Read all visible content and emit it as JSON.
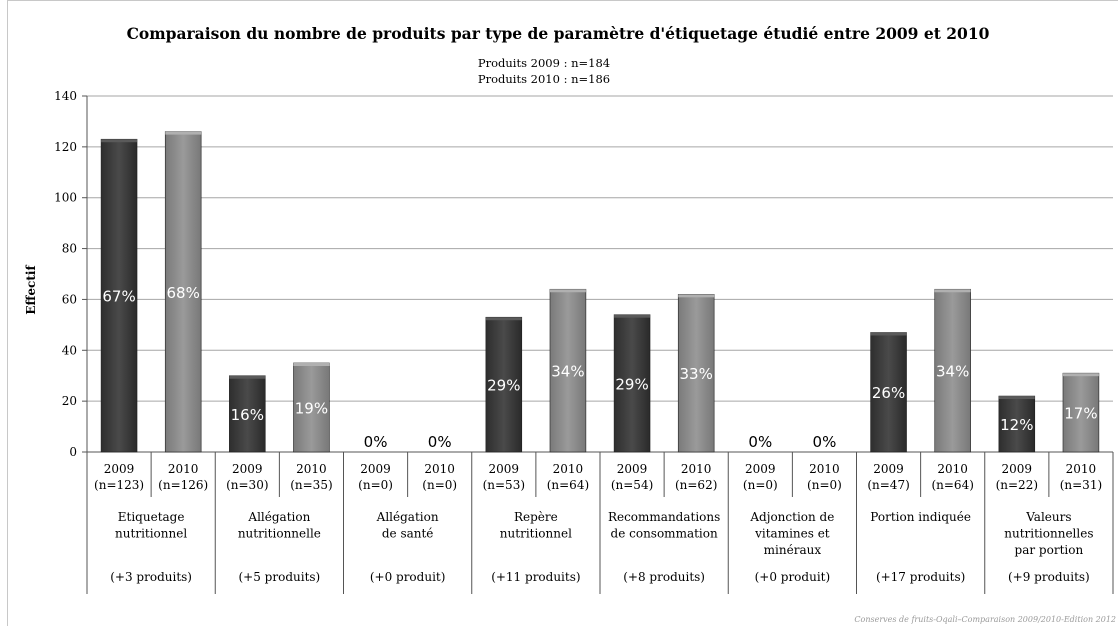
{
  "chart_data": {
    "type": "bar",
    "title": "Comparaison du nombre de produits par type de paramètre d'étiquetage étudié entre 2009 et 2010",
    "subtitle_lines": [
      "Produits 2009 : n=184",
      "Produits 2010 : n=186"
    ],
    "ylabel": "Effectif",
    "ylim": [
      0,
      140
    ],
    "yticks": [
      0,
      20,
      40,
      60,
      80,
      100,
      120,
      140
    ],
    "grid": true,
    "groups": [
      {
        "label": [
          "Etiquetage",
          "nutritionnel"
        ],
        "change": "(+3 produits)",
        "bars": [
          {
            "year": "2009",
            "n": "(n=123)",
            "value": 123,
            "pct": "67%"
          },
          {
            "year": "2010",
            "n": "(n=126)",
            "value": 126,
            "pct": "68%"
          }
        ]
      },
      {
        "label": [
          "Allégation",
          "nutritionnelle"
        ],
        "change": "(+5 produits)",
        "bars": [
          {
            "year": "2009",
            "n": "(n=30)",
            "value": 30,
            "pct": "16%"
          },
          {
            "year": "2010",
            "n": "(n=35)",
            "value": 35,
            "pct": "19%"
          }
        ]
      },
      {
        "label": [
          "Allégation",
          "de santé"
        ],
        "change": "(+0 produit)",
        "bars": [
          {
            "year": "2009",
            "n": "(n=0)",
            "value": 0,
            "pct": "0%"
          },
          {
            "year": "2010",
            "n": "(n=0)",
            "value": 0,
            "pct": "0%"
          }
        ]
      },
      {
        "label": [
          "Repère",
          "nutritionnel"
        ],
        "change": "(+11 produits)",
        "bars": [
          {
            "year": "2009",
            "n": "(n=53)",
            "value": 53,
            "pct": "29%"
          },
          {
            "year": "2010",
            "n": "(n=64)",
            "value": 64,
            "pct": "34%"
          }
        ]
      },
      {
        "label": [
          "Recommandations",
          "de consommation"
        ],
        "change": "(+8 produits)",
        "bars": [
          {
            "year": "2009",
            "n": "(n=54)",
            "value": 54,
            "pct": "29%"
          },
          {
            "year": "2010",
            "n": "(n=62)",
            "value": 62,
            "pct": "33%"
          }
        ]
      },
      {
        "label": [
          "Adjonction de",
          "vitamines et",
          "minéraux"
        ],
        "change": "(+0 produit)",
        "bars": [
          {
            "year": "2009",
            "n": "(n=0)",
            "value": 0,
            "pct": "0%"
          },
          {
            "year": "2010",
            "n": "(n=0)",
            "value": 0,
            "pct": "0%"
          }
        ]
      },
      {
        "label": [
          "Portion indiquée"
        ],
        "change": "(+17 produits)",
        "bars": [
          {
            "year": "2009",
            "n": "(n=47)",
            "value": 47,
            "pct": "26%"
          },
          {
            "year": "2010",
            "n": "(n=64)",
            "value": 64,
            "pct": "34%"
          }
        ]
      },
      {
        "label": [
          "Valeurs",
          "nutritionnelles",
          "par portion"
        ],
        "change": "(+9 produits)",
        "bars": [
          {
            "year": "2009",
            "n": "(n=22)",
            "value": 22,
            "pct": "12%"
          },
          {
            "year": "2010",
            "n": "(n=31)",
            "value": 31,
            "pct": "17%"
          }
        ]
      }
    ],
    "colors": {
      "2009": "#3f3f3f",
      "2010": "#8c8c8c",
      "grid": "#a6a6a6"
    }
  },
  "footer": "Conserves de fruits-Oqali–Comparaison 2009/2010-Edition 2012"
}
